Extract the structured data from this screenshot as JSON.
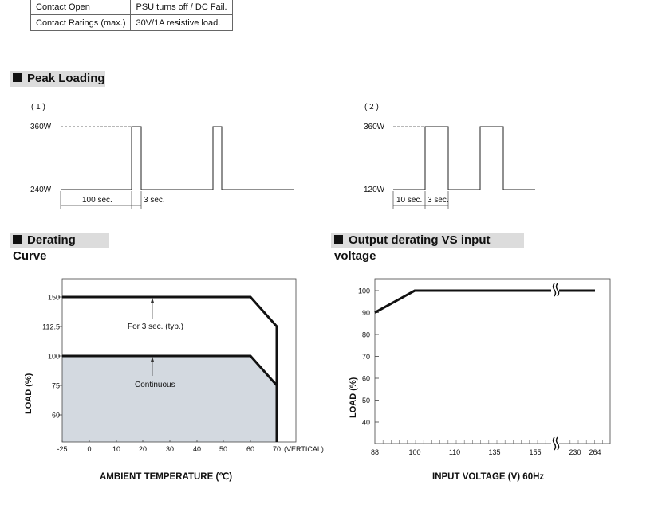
{
  "contact_table": {
    "rows": [
      {
        "label": "Contact Open",
        "value": "PSU turns off / DC Fail."
      },
      {
        "label": "Contact Ratings (max.)",
        "value": "30V/1A resistive load."
      }
    ]
  },
  "sections": {
    "peak_loading": "Peak Loading",
    "derating_curve": "Derating Curve",
    "output_derating": "Output derating VS input voltage"
  },
  "peak_loading": {
    "diagram1": {
      "label": "( 1 )",
      "high": "360W",
      "low": "240W",
      "interval": "100 sec.",
      "pulse": "3 sec."
    },
    "diagram2": {
      "label": "( 2 )",
      "high": "360W",
      "low": "120W",
      "interval": "10 sec.",
      "pulse": "3 sec."
    }
  },
  "chart_data": [
    {
      "type": "line",
      "xlabel": "AMBIENT TEMPERATURE (℃)",
      "ylabel": "LOAD (%)",
      "x_ticks": [
        "-25",
        "0",
        "10",
        "20",
        "30",
        "40",
        "50",
        "60",
        "70"
      ],
      "x_tick_suffix": "(VERTICAL)",
      "y_ticks": [
        "60",
        "75",
        "100",
        "112.5",
        "150"
      ],
      "series": [
        {
          "x": [
            -25,
            60,
            70,
            70
          ],
          "y": [
            150,
            150,
            112.5,
            0
          ]
        },
        {
          "x": [
            -25,
            60,
            70
          ],
          "y": [
            100,
            100,
            75
          ]
        }
      ],
      "annotations": [
        "For 3 sec. (typ.)",
        "Continuous"
      ],
      "fill_color": "#d3d9e0"
    },
    {
      "type": "line",
      "xlabel": "INPUT VOLTAGE (V) 60Hz",
      "ylabel": "LOAD (%)",
      "x_ticks": [
        "88",
        "100",
        "110",
        "135",
        "155",
        "230",
        "264"
      ],
      "y_ticks": [
        "40",
        "50",
        "60",
        "70",
        "80",
        "90",
        "100"
      ],
      "series": [
        {
          "x": [
            "88",
            "100",
            "264"
          ],
          "y": [
            90,
            100,
            100
          ]
        }
      ],
      "axis_break": true
    }
  ]
}
